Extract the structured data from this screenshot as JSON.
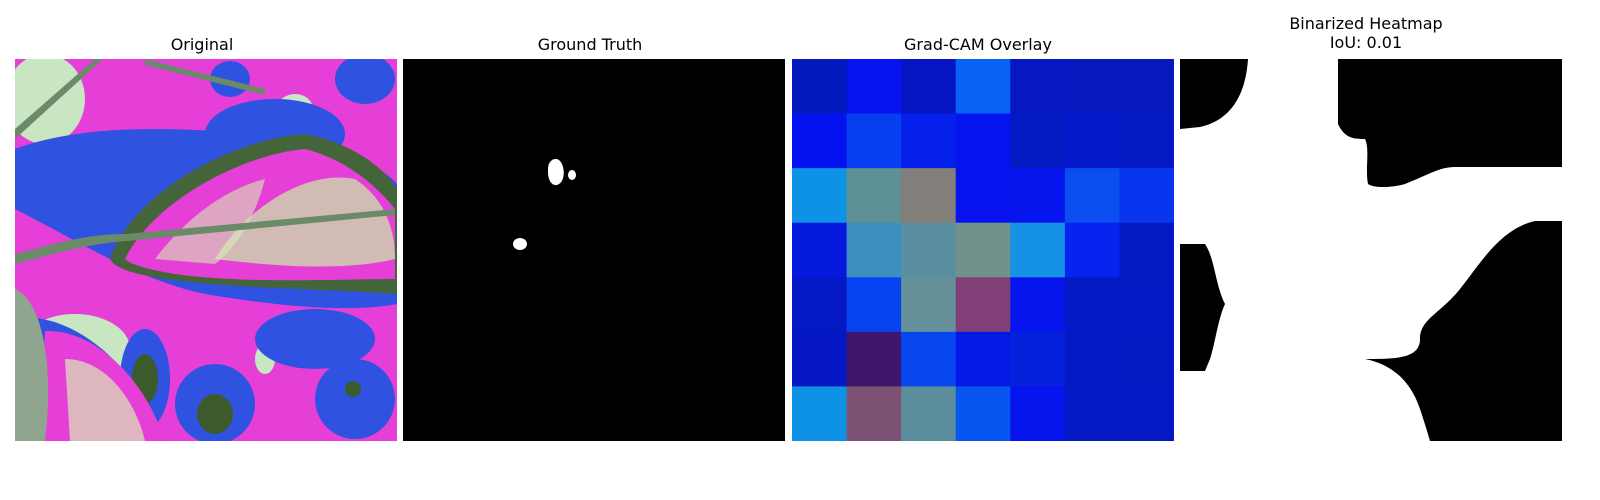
{
  "panels": [
    {
      "title": "Original"
    },
    {
      "title": "Ground Truth"
    },
    {
      "title": "Grad-CAM Overlay"
    },
    {
      "title": "Binarized Heatmap",
      "subtitle": "IoU: 0.01"
    }
  ],
  "gradcam_grid": {
    "rows": 7,
    "cols": 7,
    "colors": [
      [
        "#0419bb",
        "#0513f0",
        "#0515c4",
        "#0862f3",
        "#0518c2",
        "#0519bf",
        "#0519bd"
      ],
      [
        "#0512f0",
        "#073ef0",
        "#0620ec",
        "#0513ef",
        "#0419c2",
        "#0417cb",
        "#0519c3"
      ],
      [
        "#0d92e6",
        "#5d9196",
        "#827e7a",
        "#0713ee",
        "#0615ee",
        "#0a4ef0",
        "#0736ee"
      ],
      [
        "#0418de",
        "#3d8fc0",
        "#5a8fa1",
        "#71918a",
        "#1591e6",
        "#0624f0",
        "#0519c2"
      ],
      [
        "#0418c3",
        "#0843f2",
        "#66919a",
        "#833f78",
        "#0615ee",
        "#0419c4",
        "#0418c3"
      ],
      [
        "#0517c2",
        "#3e166c",
        "#0647f0",
        "#0519e6",
        "#0521db",
        "#0519c4",
        "#0519c2"
      ],
      [
        "#0d91e4",
        "#7e5275",
        "#5a8e9c",
        "#0756f0",
        "#0615ee",
        "#0519c4",
        "#0419c3"
      ]
    ]
  },
  "iou": 0.01
}
